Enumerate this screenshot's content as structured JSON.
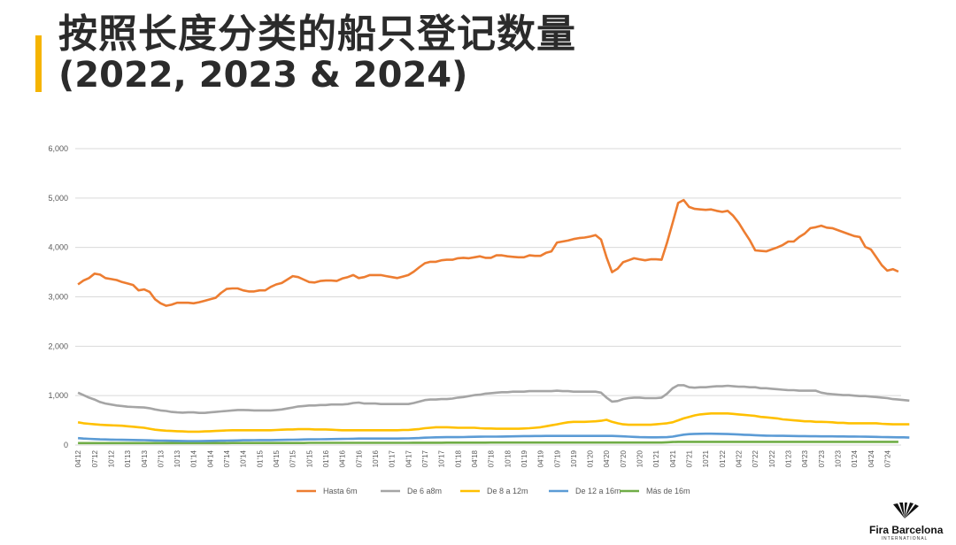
{
  "title_line1": "按照长度分类的船只登记数量",
  "title_line2": "(2022, 2023 & 2024)",
  "logo": {
    "brand": "Fira Barcelona",
    "sub": "INTERNATIONAL"
  },
  "colors": {
    "accent": "#f5b400"
  },
  "chart_data": {
    "type": "line",
    "grid": true,
    "legend_position": "bottom",
    "ylim": [
      0,
      6000
    ],
    "y_ticks": [
      "0",
      "1,000",
      "2,000",
      "3,000",
      "4,000",
      "5,000",
      "6,000"
    ],
    "x_tick_labels": [
      "04'12",
      "07'12",
      "10'12",
      "01'13",
      "04'13",
      "07'13",
      "10'13",
      "01'14",
      "04'14",
      "07'14",
      "10'14",
      "01'15",
      "04'15",
      "07'15",
      "10'15",
      "01'16",
      "04'16",
      "07'16",
      "10'16",
      "01'17",
      "04'17",
      "07'17",
      "10'17",
      "01'18",
      "04'18",
      "07'18",
      "10'18",
      "01'19",
      "04'19",
      "07'19",
      "10'19",
      "01'20",
      "04'20",
      "07'20",
      "10'20",
      "01'21",
      "04'21",
      "07'21",
      "10'21",
      "01'22",
      "04'22",
      "07'22",
      "10'22",
      "01'23",
      "04'23",
      "07'23",
      "10'23",
      "01'24",
      "04'24",
      "07'24"
    ],
    "series": [
      {
        "name": "Hasta 6m",
        "color": "#ed7d31",
        "values": [
          3250,
          3330,
          3380,
          3470,
          3450,
          3380,
          3360,
          3340,
          3300,
          3270,
          3240,
          3130,
          3150,
          3100,
          2950,
          2870,
          2820,
          2840,
          2880,
          2880,
          2880,
          2870,
          2890,
          2920,
          2950,
          2980,
          3080,
          3160,
          3170,
          3170,
          3130,
          3110,
          3110,
          3130,
          3130,
          3200,
          3250,
          3280,
          3350,
          3420,
          3400,
          3350,
          3300,
          3290,
          3320,
          3330,
          3330,
          3320,
          3370,
          3400,
          3440,
          3380,
          3400,
          3440,
          3440,
          3440,
          3420,
          3400,
          3380,
          3410,
          3440,
          3510,
          3600,
          3680,
          3710,
          3710,
          3740,
          3750,
          3750,
          3780,
          3790,
          3780,
          3800,
          3820,
          3790,
          3790,
          3840,
          3840,
          3820,
          3810,
          3800,
          3800,
          3840,
          3830,
          3830,
          3890,
          3920,
          4100,
          4120,
          4140,
          4170,
          4190,
          4200,
          4220,
          4250,
          4160,
          3800,
          3500,
          3570,
          3700,
          3740,
          3780,
          3760,
          3740,
          3760,
          3760,
          3750,
          4100,
          4500,
          4900,
          4960,
          4820,
          4780,
          4770,
          4760,
          4770,
          4740,
          4720,
          4740,
          4640,
          4500,
          4320,
          4150,
          3940,
          3930,
          3920,
          3960,
          4000,
          4050,
          4120,
          4120,
          4210,
          4280,
          4390,
          4410,
          4440,
          4400,
          4390,
          4350,
          4310,
          4270,
          4230,
          4210,
          4010,
          3960,
          3800,
          3640,
          3530,
          3560,
          3510
        ]
      },
      {
        "name": "De 6 a8m",
        "color": "#a5a5a5",
        "values": [
          1060,
          1010,
          960,
          920,
          870,
          840,
          820,
          800,
          790,
          775,
          770,
          765,
          760,
          745,
          720,
          700,
          690,
          670,
          660,
          655,
          660,
          660,
          650,
          650,
          660,
          670,
          680,
          690,
          700,
          710,
          710,
          705,
          700,
          700,
          700,
          700,
          710,
          720,
          740,
          760,
          780,
          790,
          800,
          800,
          810,
          810,
          820,
          820,
          820,
          830,
          850,
          860,
          840,
          840,
          840,
          830,
          830,
          830,
          830,
          830,
          830,
          850,
          880,
          910,
          920,
          920,
          930,
          930,
          940,
          960,
          970,
          990,
          1010,
          1020,
          1040,
          1050,
          1060,
          1070,
          1070,
          1080,
          1080,
          1080,
          1090,
          1090,
          1090,
          1090,
          1090,
          1100,
          1090,
          1090,
          1080,
          1080,
          1080,
          1080,
          1080,
          1060,
          960,
          880,
          890,
          930,
          950,
          960,
          960,
          950,
          950,
          950,
          960,
          1040,
          1150,
          1210,
          1210,
          1170,
          1160,
          1170,
          1170,
          1180,
          1190,
          1190,
          1200,
          1190,
          1180,
          1180,
          1170,
          1170,
          1150,
          1150,
          1140,
          1130,
          1120,
          1110,
          1110,
          1100,
          1100,
          1100,
          1100,
          1060,
          1040,
          1030,
          1020,
          1010,
          1010,
          1000,
          990,
          990,
          980,
          970,
          960,
          950,
          930,
          920,
          910,
          900
        ]
      },
      {
        "name": "De 8 a 12m",
        "color": "#ffc000",
        "values": [
          460,
          440,
          430,
          420,
          410,
          405,
          400,
          395,
          390,
          380,
          370,
          360,
          350,
          330,
          310,
          300,
          290,
          285,
          280,
          275,
          270,
          270,
          270,
          275,
          280,
          285,
          290,
          295,
          300,
          300,
          300,
          300,
          300,
          300,
          300,
          300,
          305,
          310,
          315,
          315,
          320,
          320,
          320,
          315,
          315,
          315,
          310,
          305,
          300,
          300,
          300,
          300,
          300,
          300,
          300,
          300,
          300,
          300,
          300,
          305,
          305,
          315,
          325,
          340,
          350,
          360,
          360,
          360,
          355,
          350,
          350,
          350,
          350,
          340,
          335,
          335,
          330,
          330,
          330,
          330,
          330,
          335,
          340,
          350,
          360,
          380,
          400,
          420,
          440,
          460,
          470,
          470,
          470,
          475,
          480,
          490,
          510,
          470,
          440,
          420,
          410,
          410,
          410,
          410,
          410,
          420,
          430,
          440,
          460,
          500,
          540,
          570,
          600,
          620,
          630,
          640,
          640,
          640,
          640,
          630,
          620,
          610,
          600,
          590,
          570,
          560,
          550,
          540,
          520,
          510,
          500,
          490,
          480,
          480,
          470,
          470,
          465,
          460,
          450,
          450,
          440,
          440,
          440,
          440,
          440,
          440,
          430,
          425,
          420,
          420,
          420,
          420
        ]
      },
      {
        "name": "De 12 a 16m",
        "color": "#5b9bd5",
        "values": [
          140,
          130,
          125,
          120,
          115,
          112,
          110,
          108,
          106,
          104,
          102,
          100,
          98,
          95,
          92,
          90,
          88,
          86,
          84,
          82,
          80,
          80,
          80,
          82,
          84,
          86,
          88,
          90,
          92,
          94,
          96,
          96,
          98,
          100,
          100,
          100,
          102,
          104,
          106,
          108,
          110,
          112,
          114,
          115,
          116,
          118,
          120,
          122,
          124,
          126,
          128,
          130,
          130,
          130,
          130,
          130,
          130,
          130,
          130,
          132,
          134,
          138,
          142,
          148,
          152,
          155,
          158,
          160,
          160,
          160,
          162,
          164,
          166,
          168,
          170,
          170,
          170,
          172,
          174,
          176,
          178,
          180,
          180,
          182,
          182,
          184,
          184,
          184,
          184,
          184,
          184,
          184,
          184,
          184,
          184,
          184,
          184,
          184,
          180,
          176,
          170,
          165,
          160,
          158,
          156,
          156,
          158,
          160,
          170,
          190,
          210,
          220,
          225,
          228,
          230,
          230,
          228,
          226,
          222,
          218,
          214,
          208,
          204,
          198,
          194,
          190,
          188,
          186,
          186,
          184,
          182,
          180,
          180,
          178,
          178,
          176,
          176,
          176,
          174,
          174,
          172,
          172,
          170,
          168,
          166,
          164,
          162,
          160,
          158,
          156,
          155,
          150
        ]
      },
      {
        "name": "Más de 16m",
        "color": "#70ad47",
        "values": [
          40,
          40,
          40,
          40,
          40,
          40,
          40,
          40,
          40,
          40,
          40,
          40,
          40,
          40,
          40,
          40,
          40,
          40,
          40,
          40,
          40,
          40,
          40,
          40,
          40,
          40,
          40,
          40,
          42,
          42,
          42,
          42,
          42,
          42,
          42,
          42,
          42,
          42,
          42,
          42,
          42,
          42,
          44,
          44,
          44,
          44,
          44,
          44,
          44,
          44,
          44,
          44,
          44,
          44,
          44,
          44,
          44,
          44,
          44,
          44,
          44,
          46,
          46,
          46,
          46,
          46,
          46,
          48,
          48,
          48,
          48,
          48,
          48,
          48,
          48,
          50,
          50,
          50,
          50,
          50,
          50,
          50,
          50,
          50,
          50,
          50,
          50,
          50,
          50,
          50,
          50,
          50,
          50,
          50,
          50,
          50,
          50,
          50,
          50,
          50,
          50,
          50,
          50,
          50,
          50,
          50,
          50,
          55,
          60,
          65,
          65,
          65,
          65,
          65,
          65,
          65,
          65,
          65,
          65,
          65,
          65,
          65,
          65,
          65,
          65,
          65,
          65,
          65,
          65,
          65,
          65,
          65,
          65,
          65,
          65,
          65,
          65,
          65,
          65,
          65,
          65,
          65,
          65,
          65,
          65,
          65,
          65,
          65,
          65,
          65
        ]
      }
    ]
  }
}
